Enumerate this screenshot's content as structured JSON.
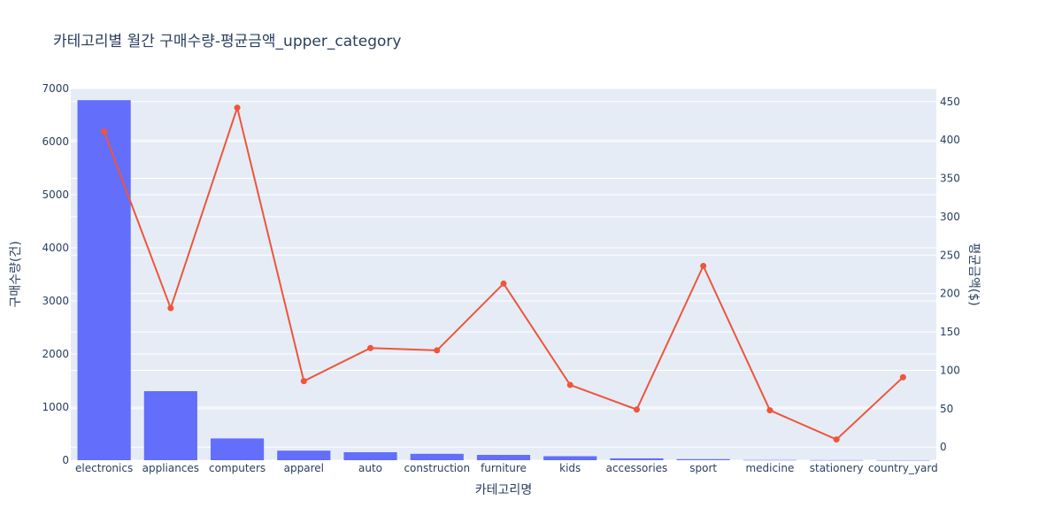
{
  "chart_data": {
    "type": "bar+line",
    "title": "카테고리별 월간 구매수량-평균금액_upper_category",
    "xlabel": "카테고리명",
    "ylabel_left": "구매수량(건)",
    "ylabel_right": "평균금액($)",
    "categories": [
      "electronics",
      "appliances",
      "computers",
      "apparel",
      "auto",
      "construction",
      "furniture",
      "kids",
      "accessories",
      "sport",
      "medicine",
      "stationery",
      "country_yard"
    ],
    "series": [
      {
        "type": "bar",
        "axis": "left",
        "values": [
          6780,
          1300,
          410,
          180,
          150,
          120,
          100,
          75,
          35,
          20,
          5,
          3,
          2
        ]
      },
      {
        "type": "line",
        "axis": "right",
        "values": [
          411,
          181,
          442,
          86,
          129,
          126,
          213,
          81,
          49,
          236,
          48,
          10,
          91
        ]
      }
    ],
    "ylim_left": [
      0,
      7000
    ],
    "ylim_right": [
      -17,
      467
    ],
    "yticks_left": [
      "0",
      "1000",
      "2000",
      "3000",
      "4000",
      "5000",
      "6000",
      "7000"
    ],
    "yticks_right": [
      "0",
      "50",
      "100",
      "150",
      "200",
      "250",
      "300",
      "350",
      "400",
      "450"
    ],
    "grid": true,
    "colors": {
      "bar": "#636efa",
      "line": "#ef553b",
      "plot_bg": "#e5ecf6",
      "text": "#2a3f5f"
    }
  }
}
